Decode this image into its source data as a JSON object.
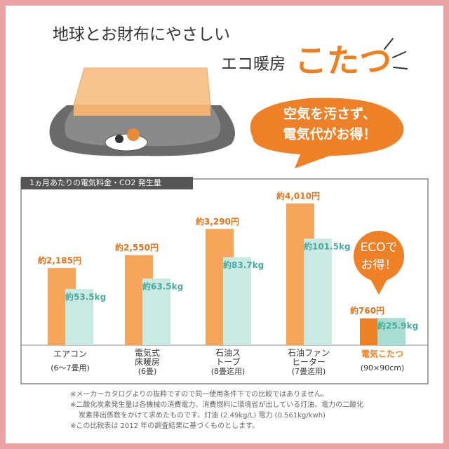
{
  "header": {
    "line1": "地球とお財布にやさしい",
    "line2": "エコ暖房",
    "highlight": "こたつ"
  },
  "bubble": {
    "lines": [
      "空気を汚さず、",
      "電気代がお得！"
    ]
  },
  "chart_data": {
    "type": "bar",
    "title": "1ヵ月あたりの電気料金・CO2 発生量",
    "categories": [
      "エアコン",
      "電気式床暖房",
      "石油ストーブ",
      "石油ファンヒーター",
      "電気こたつ"
    ],
    "category_notes": [
      "(6～7畳用)",
      "(6畳)",
      "(8畳迄用)",
      "(7畳迄用)",
      "(90×90cm)"
    ],
    "category_colors": [
      "#333333",
      "#333333",
      "#333333",
      "#333333",
      "#ee7f22"
    ],
    "series": [
      {
        "colors": [
          "#f5a65b",
          "#f5a65b",
          "#f5a65b",
          "#f5a65b",
          "#ee8027"
        ],
        "label_color": "#e0731c",
        "values": [
          2185,
          2550,
          3290,
          4010,
          760
        ],
        "value_labels": [
          "約2,185円",
          "約2,550円",
          "約3,290円",
          "約4,010円",
          "約760円"
        ]
      },
      {
        "colors": [
          "#c9e9e3",
          "#c9e9e3",
          "#c9e9e3",
          "#c9e9e3",
          "#a8ddd3"
        ],
        "label_color": "#4aa99a",
        "values": [
          53.5,
          63.5,
          83.7,
          101.5,
          25.9
        ],
        "value_labels": [
          "約53.5kg",
          "約63.5kg",
          "約83.7kg",
          "約101.5kg",
          "約25.9kg"
        ]
      }
    ],
    "callout": [
      "ECOで",
      "お得！"
    ]
  },
  "notes": [
    "※メーカーカタログよりの抜粋ですので同一使用条件下での比較ではありません。",
    "※二酸化炭素発生量は各機械の消費電力、消費燃料に環境省が出している灯油、電力の二酸化",
    "炭素排出係数をかけて求めたものです。灯油 (2.49kg/L) 電力 (0.561kg/kwh)",
    "※この比較表は 2012 年の調査結果に基づくものとします。"
  ]
}
